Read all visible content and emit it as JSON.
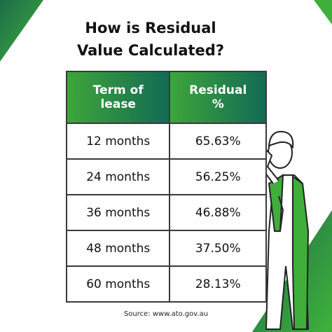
{
  "header": {
    "title": "How is Residual Value Calculated?"
  },
  "table": {
    "columns": [
      "Term of lease",
      "Residual %"
    ],
    "rows": [
      [
        "12 months",
        "65.63%"
      ],
      [
        "24 months",
        "56.25%"
      ],
      [
        "36 months",
        "46.88%"
      ],
      [
        "48 months",
        "37.50%"
      ],
      [
        "60 months",
        "28.13%"
      ]
    ]
  },
  "footer": {
    "source": "Source: www.ato.gov.au"
  }
}
